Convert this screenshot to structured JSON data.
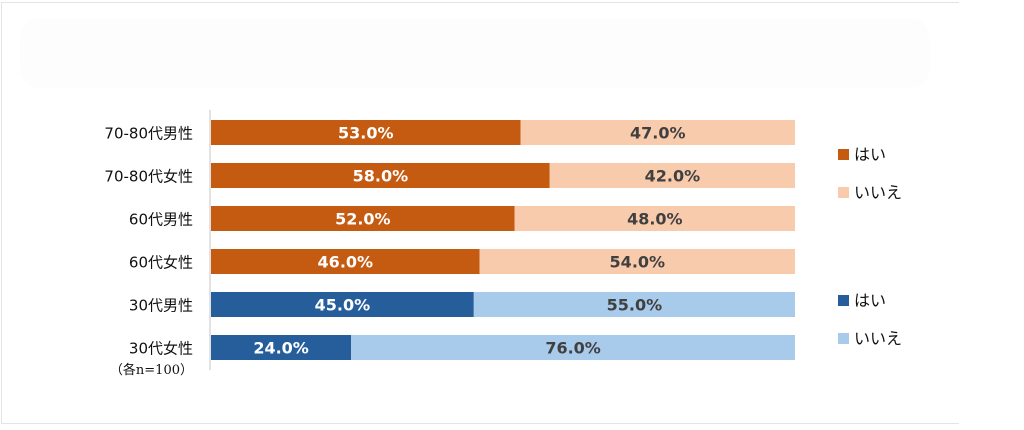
{
  "chart_data": {
    "type": "bar",
    "orientation": "horizontal",
    "stacked": true,
    "title": "",
    "xlabel": "",
    "ylabel": "",
    "xlim": [
      0,
      100
    ],
    "grid": false,
    "categories": [
      "70-80代男性",
      "70-80代女性",
      "60代男性",
      "60代女性",
      "30代男性",
      "30代女性"
    ],
    "series": [
      {
        "name": "はい",
        "values": [
          53.0,
          58.0,
          52.0,
          46.0,
          45.0,
          24.0
        ]
      },
      {
        "name": "いいえ",
        "values": [
          47.0,
          42.0,
          48.0,
          54.0,
          55.0,
          76.0
        ]
      }
    ],
    "data_labels": [
      [
        "53.0%",
        "47.0%"
      ],
      [
        "58.0%",
        "42.0%"
      ],
      [
        "52.0%",
        "48.0%"
      ],
      [
        "46.0%",
        "54.0%"
      ],
      [
        "45.0%",
        "55.0%"
      ],
      [
        "24.0%",
        "76.0%"
      ]
    ],
    "color_groups": [
      "orange",
      "orange",
      "orange",
      "orange",
      "blue",
      "blue"
    ],
    "note": "（各n=100）",
    "legend": {
      "placement": "right",
      "groups": [
        {
          "group": "orange",
          "entries": [
            {
              "label": "はい",
              "color": "#C55A11"
            },
            {
              "label": "いいえ",
              "color": "#F8CBAD"
            }
          ]
        },
        {
          "group": "blue",
          "entries": [
            {
              "label": "はい",
              "color": "#255E9B"
            },
            {
              "label": "いいえ",
              "color": "#A9CBEB"
            }
          ]
        }
      ]
    }
  },
  "colors": {
    "orange_yes": "#C55A11",
    "orange_no": "#F8CBAD",
    "blue_yes": "#255E9B",
    "blue_no": "#A9CBEB",
    "label_on_dark": "#FFFFFF",
    "label_on_light": "#404040",
    "axis": "#D9D9D9"
  }
}
